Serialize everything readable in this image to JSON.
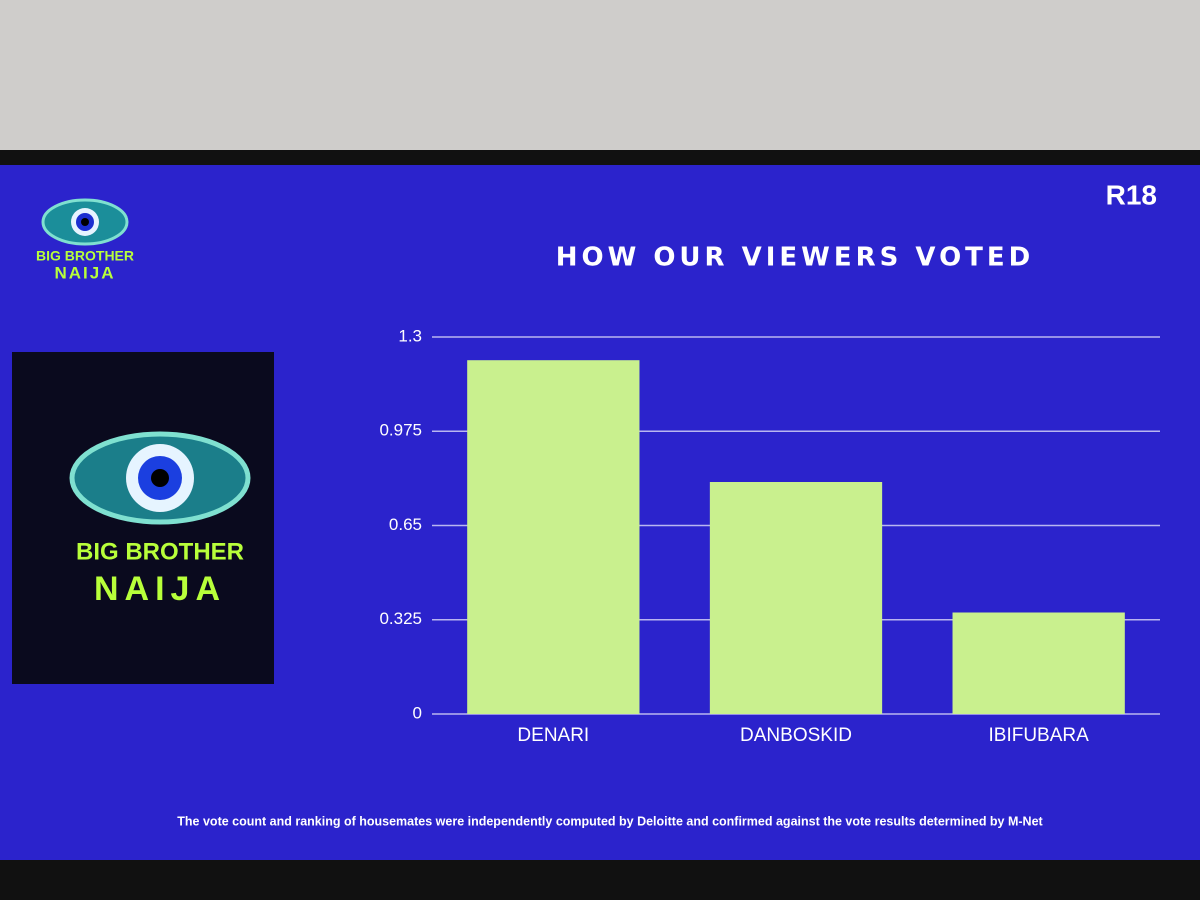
{
  "rating": "R18",
  "logo_small": {
    "line1": "BIG BROTHER",
    "line2": "NAIJA"
  },
  "logo_large": {
    "line1": "BIG BROTHER",
    "line2": "NAIJA"
  },
  "footnote": "The vote count and ranking of housemates were independently computed by Deloitte and confirmed against the vote results determined by M-Net",
  "chart_data": {
    "type": "bar",
    "title": "HOW OUR VIEWERS VOTED",
    "categories": [
      "DENARI",
      "DANBOSKID",
      "IBIFUBARA"
    ],
    "values": [
      1.22,
      0.8,
      0.35
    ],
    "color": "#c9f08e",
    "ylim": [
      0,
      1.3
    ],
    "yticks": [
      0,
      0.325,
      0.65,
      0.975,
      1.3
    ],
    "grid": true
  }
}
